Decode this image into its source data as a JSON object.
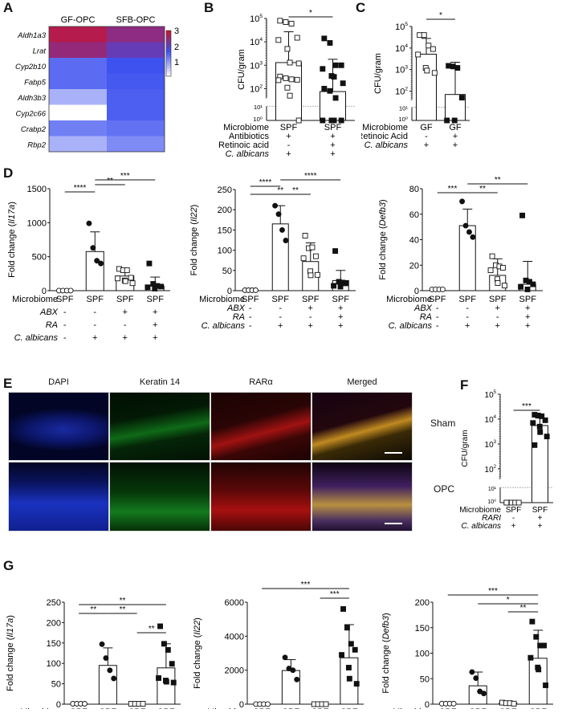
{
  "panels": {
    "A": "A",
    "B": "B",
    "C": "C",
    "D": "D",
    "E": "E",
    "F": "F",
    "G": "G"
  },
  "chart_data": [
    {
      "id": "A",
      "type": "heatmap",
      "columns": [
        "GF-OPC",
        "SFB-OPC"
      ],
      "rows": [
        "Aldh1a3",
        "Lrat",
        "Cyp2b10",
        "Fabp5",
        "Aldh3b3",
        "Cyp2c66",
        "Crabp2",
        "Rbp2"
      ],
      "values": [
        [
          3.0,
          2.7
        ],
        [
          2.75,
          2.4
        ],
        [
          1.85,
          2.05
        ],
        [
          1.85,
          2.0
        ],
        [
          1.3,
          1.95
        ],
        [
          0.7,
          1.95
        ],
        [
          1.7,
          1.8
        ],
        [
          1.3,
          1.6
        ]
      ],
      "colorbar": {
        "ticks": [
          "1",
          "2",
          "3"
        ],
        "range": [
          0.7,
          3.2
        ],
        "colors": [
          "#ffffff",
          "#3b4ff0",
          "#d0102a"
        ]
      }
    },
    {
      "id": "B",
      "type": "bar",
      "ylabel": "CFU/gram",
      "yscale": "log",
      "yticks": [
        "10^0",
        "10^1",
        "10^2",
        "10^3",
        "10^4",
        "10^5"
      ],
      "categories": [
        "SPF",
        "SPF"
      ],
      "values": [
        1300,
        75
      ],
      "error_upper": [
        27000,
        1800
      ],
      "points": [
        [
          80000,
          70000,
          60000,
          15000,
          12000,
          5000,
          1300,
          1200,
          330,
          280,
          250,
          240,
          230,
          110,
          50,
          1
        ],
        [
          14000,
          9000,
          1000,
          1000,
          700,
          350,
          320,
          170,
          100,
          80,
          40,
          1,
          1,
          1,
          1
        ]
      ],
      "significance": [
        {
          "from": 0,
          "to": 1,
          "label": "*"
        }
      ],
      "factors": [
        {
          "name": "Microbiome",
          "values": [
            "SPF",
            "SPF"
          ],
          "italic": false
        },
        {
          "name": "Antibiotics",
          "values": [
            "+",
            "+"
          ],
          "italic": false
        },
        {
          "name": "Retinoic acid",
          "values": [
            "-",
            "+"
          ],
          "italic": false
        },
        {
          "name": "C. albicans",
          "values": [
            "+",
            "+"
          ],
          "italic": true
        }
      ]
    },
    {
      "id": "C",
      "type": "bar",
      "ylabel": "CFU/gram",
      "yscale": "log",
      "yticks": [
        "10^0",
        "10^1",
        "10^2",
        "10^3",
        "10^4",
        "10^5"
      ],
      "categories": [
        "GF",
        "GF"
      ],
      "values": [
        5200,
        70
      ],
      "error_upper": [
        28000,
        2200
      ],
      "points": [
        [
          40000,
          40000,
          13000,
          9000,
          5000,
          1200,
          900,
          700
        ],
        [
          1500,
          1400,
          1200,
          50,
          1,
          1
        ]
      ],
      "significance": [
        {
          "from": 0,
          "to": 1,
          "label": "*"
        }
      ],
      "factors": [
        {
          "name": "Microbiome",
          "values": [
            "GF",
            "GF"
          ],
          "italic": false
        },
        {
          "name": "Retinoic Acid",
          "values": [
            "-",
            "+"
          ],
          "italic": false
        },
        {
          "name": "C. albicans",
          "values": [
            "+",
            "+"
          ],
          "italic": true
        }
      ]
    },
    {
      "id": "D1",
      "type": "bar",
      "ylabel_prefix": "Fold change (",
      "ylabel_gene": "Il17a",
      "ylabel_suffix": ")",
      "ylim": [
        0,
        1500
      ],
      "yticks": [
        0,
        500,
        1000,
        1500
      ],
      "categories": [
        "SPF",
        "SPF",
        "SPF",
        "SPF"
      ],
      "values": [
        1,
        575,
        215,
        70
      ],
      "error_upper": [
        1,
        865,
        280,
        200
      ],
      "points": [
        [
          1,
          1,
          1,
          1
        ],
        [
          990,
          630,
          440,
          400
        ],
        [
          320,
          300,
          300,
          190,
          180,
          150,
          140,
          110
        ],
        [
          400,
          100,
          70,
          60,
          50,
          30
        ]
      ],
      "significance": [
        {
          "from": 0,
          "to": 1,
          "label": "****"
        },
        {
          "from": 1,
          "to": 2,
          "label": "**"
        },
        {
          "from": 1,
          "to": 3,
          "label": "***"
        }
      ],
      "factors": [
        {
          "name": "Microbiome",
          "values": [
            "SPF",
            "SPF",
            "SPF",
            "SPF"
          ],
          "italic": false
        },
        {
          "name": "ABX",
          "values": [
            "-",
            "-",
            "+",
            "+"
          ],
          "italic": true
        },
        {
          "name": "RA",
          "values": [
            "-",
            "-",
            "-",
            "+"
          ],
          "italic": true
        },
        {
          "name": "C. albicans",
          "values": [
            "-",
            "+",
            "+",
            "+"
          ],
          "italic": true
        }
      ]
    },
    {
      "id": "D2",
      "type": "bar",
      "ylabel_prefix": "Fold change (",
      "ylabel_gene": "Il22",
      "ylabel_suffix": ")",
      "ylim": [
        0,
        250
      ],
      "yticks": [
        0,
        50,
        100,
        150,
        200,
        250
      ],
      "categories": [
        "SPF",
        "SPF",
        "SPF",
        "SPF"
      ],
      "values": [
        1,
        165,
        72,
        25
      ],
      "error_upper": [
        1,
        210,
        118,
        50
      ],
      "points": [
        [
          1,
          1,
          1,
          1
        ],
        [
          210,
          189,
          150,
          124
        ],
        [
          136,
          105,
          107,
          85,
          80,
          48,
          38,
          39
        ],
        [
          98,
          22,
          20,
          18,
          12,
          10
        ]
      ],
      "significance": [
        {
          "from": 0,
          "to": 2,
          "label": "**"
        },
        {
          "from": 0,
          "to": 1,
          "label": "****"
        },
        {
          "from": 1,
          "to": 2,
          "label": "**"
        },
        {
          "from": 1,
          "to": 3,
          "label": "****"
        }
      ],
      "factors": [
        {
          "name": "Microbiome",
          "values": [
            "SPF",
            "SPF",
            "SPF",
            "SPF"
          ],
          "italic": false
        },
        {
          "name": "ABX",
          "values": [
            "-",
            "-",
            "+",
            "+"
          ],
          "italic": true
        },
        {
          "name": "RA",
          "values": [
            "-",
            "-",
            "-",
            "+"
          ],
          "italic": true
        },
        {
          "name": "C. albicans",
          "values": [
            "-",
            "+",
            "+",
            "+"
          ],
          "italic": true
        }
      ]
    },
    {
      "id": "D3",
      "type": "bar",
      "ylabel_prefix": "Fold change (",
      "ylabel_gene": "Defb3",
      "ylabel_suffix": ")",
      "ylim": [
        0,
        80
      ],
      "yticks": [
        0,
        20,
        40,
        60,
        80
      ],
      "categories": [
        "SPF",
        "SPF",
        "SPF",
        "SPF"
      ],
      "values": [
        1,
        51,
        12,
        5
      ],
      "error_upper": [
        1,
        64,
        25,
        23
      ],
      "points": [
        [
          1,
          1,
          1,
          1
        ],
        [
          70,
          51,
          46,
          42
        ],
        [
          27,
          20,
          19,
          18,
          16,
          9,
          6,
          4
        ],
        [
          59,
          8,
          7,
          5,
          3,
          1
        ]
      ],
      "significance": [
        {
          "from": 0,
          "to": 1,
          "label": "***"
        },
        {
          "from": 1,
          "to": 2,
          "label": "**"
        },
        {
          "from": 1,
          "to": 3,
          "label": "**"
        }
      ],
      "factors": [
        {
          "name": "Microbiome",
          "values": [
            "SPF",
            "SPF",
            "SPF",
            "SPF"
          ],
          "italic": false
        },
        {
          "name": "ABX",
          "values": [
            "-",
            "-",
            "+",
            "+"
          ],
          "italic": true
        },
        {
          "name": "RA",
          "values": [
            "-",
            "-",
            "-",
            "+"
          ],
          "italic": true
        },
        {
          "name": "C. albicans",
          "values": [
            "-",
            "+",
            "+",
            "+"
          ],
          "italic": true
        }
      ]
    },
    {
      "id": "F",
      "type": "bar",
      "ylabel": "CFU/gram",
      "yscale": "log",
      "yticks": [
        "10^0",
        "10^1",
        "10^2",
        "10^3",
        "10^4",
        "10^5"
      ],
      "categories": [
        "SPF",
        "SPF"
      ],
      "values": [
        1,
        5500
      ],
      "error_upper": [
        1,
        11000
      ],
      "points": [
        [
          1,
          1,
          1,
          1,
          1
        ],
        [
          15000,
          14000,
          13000,
          9000,
          7000,
          5000,
          3000,
          2000,
          900
        ]
      ],
      "significance": [
        {
          "from": 0,
          "to": 1,
          "label": "***"
        }
      ],
      "factors": [
        {
          "name": "Microbiome",
          "values": [
            "SPF",
            "SPF"
          ],
          "italic": false
        },
        {
          "name": "RARI",
          "values": [
            "-",
            "+"
          ],
          "italic": true
        },
        {
          "name": "C. albicans",
          "values": [
            "+",
            "+"
          ],
          "italic": true
        }
      ]
    },
    {
      "id": "G1",
      "type": "bar",
      "ylabel_prefix": "Fold change (",
      "ylabel_gene": "Il17a",
      "ylabel_suffix": ")",
      "ylim": [
        0,
        250
      ],
      "yticks": [
        0,
        50,
        100,
        150,
        200,
        250
      ],
      "categories": [
        "SPF",
        "SPF",
        "SPF",
        "SPF"
      ],
      "values": [
        1,
        95,
        1,
        89
      ],
      "error_upper": [
        1,
        138,
        1,
        148
      ],
      "points": [
        [
          1,
          1,
          1,
          1
        ],
        [
          147,
          113,
          83,
          63
        ],
        [
          1,
          1,
          1,
          1
        ],
        [
          191,
          148,
          133,
          99,
          64,
          58,
          55,
          53
        ]
      ],
      "significance": [
        {
          "from": 0,
          "to": 3,
          "label": "**"
        },
        {
          "from": 2,
          "to": 3,
          "label": "**"
        },
        {
          "from": 0,
          "to": 1,
          "label": "**"
        },
        {
          "from": 1,
          "to": 2,
          "label": "**"
        }
      ],
      "factors": [
        {
          "name": "Microbiome",
          "values": [
            "SPF",
            "SPF",
            "SPF",
            "SPF"
          ],
          "italic": false
        },
        {
          "name": "RARI",
          "values": [
            "-",
            "-",
            "+",
            "+"
          ],
          "italic": true
        },
        {
          "name": "C. albicans",
          "values": [
            "-",
            "+",
            "-",
            "+"
          ],
          "italic": true
        }
      ]
    },
    {
      "id": "G2",
      "type": "bar",
      "ylabel_prefix": "Fold change (",
      "ylabel_gene": "Il22",
      "ylabel_suffix": ")",
      "ylim": [
        0,
        6000
      ],
      "yticks": [
        0,
        2000,
        4000,
        6000
      ],
      "categories": [
        "SPF",
        "SPF",
        "SPF",
        "SPF"
      ],
      "values": [
        1,
        1980,
        1,
        2730
      ],
      "error_upper": [
        1,
        2620,
        1,
        4680
      ],
      "points": [
        [
          1,
          1,
          1,
          1
        ],
        [
          2750,
          2100,
          2000,
          1450
        ],
        [
          1,
          1,
          1,
          1
        ],
        [
          5600,
          4500,
          3550,
          3200,
          2900,
          2150,
          1500,
          1200
        ]
      ],
      "significance": [
        {
          "from": 0,
          "to": 3,
          "label": "***"
        },
        {
          "from": 2,
          "to": 3,
          "label": "***"
        }
      ],
      "factors": [
        {
          "name": "Microbiome",
          "values": [
            "SPF",
            "SPF",
            "SPF",
            "SPF"
          ],
          "italic": false
        },
        {
          "name": "RARI",
          "values": [
            "-",
            "-",
            "+",
            "+"
          ],
          "italic": true
        },
        {
          "name": "C. albicans",
          "values": [
            "-",
            "+",
            "-",
            "+"
          ],
          "italic": true
        }
      ]
    },
    {
      "id": "G3",
      "type": "bar",
      "ylabel_prefix": "Fold change (",
      "ylabel_gene": "Defb3",
      "ylabel_suffix": ")",
      "ylim": [
        0,
        200
      ],
      "yticks": [
        0,
        50,
        100,
        150,
        200
      ],
      "categories": [
        "SPF",
        "SPF",
        "SPF",
        "SPF"
      ],
      "values": [
        1,
        36,
        2,
        90
      ],
      "error_upper": [
        1,
        63,
        2,
        145
      ],
      "points": [
        [
          1,
          1,
          1,
          1
        ],
        [
          63,
          51,
          25,
          21
        ],
        [
          3,
          2,
          2,
          1
        ],
        [
          162,
          132,
          115,
          115,
          91,
          72,
          68,
          37
        ]
      ],
      "significance": [
        {
          "from": 0,
          "to": 3,
          "label": "***"
        },
        {
          "from": 1,
          "to": 3,
          "label": "*"
        },
        {
          "from": 2,
          "to": 3,
          "label": "**"
        }
      ],
      "factors": [
        {
          "name": "Microbiome",
          "values": [
            "SPF",
            "SPF",
            "SPF",
            "SPF"
          ],
          "italic": false
        },
        {
          "name": "RARI",
          "values": [
            "-",
            "-",
            "+",
            "+"
          ],
          "italic": true
        },
        {
          "name": "C. albicans",
          "values": [
            "-",
            "+",
            "-",
            "+"
          ],
          "italic": true
        }
      ]
    }
  ],
  "imaging": {
    "columns": [
      "DAPI",
      "Keratin 14",
      "RARα",
      "Merged"
    ],
    "rows": [
      "Sham",
      "OPC"
    ]
  }
}
